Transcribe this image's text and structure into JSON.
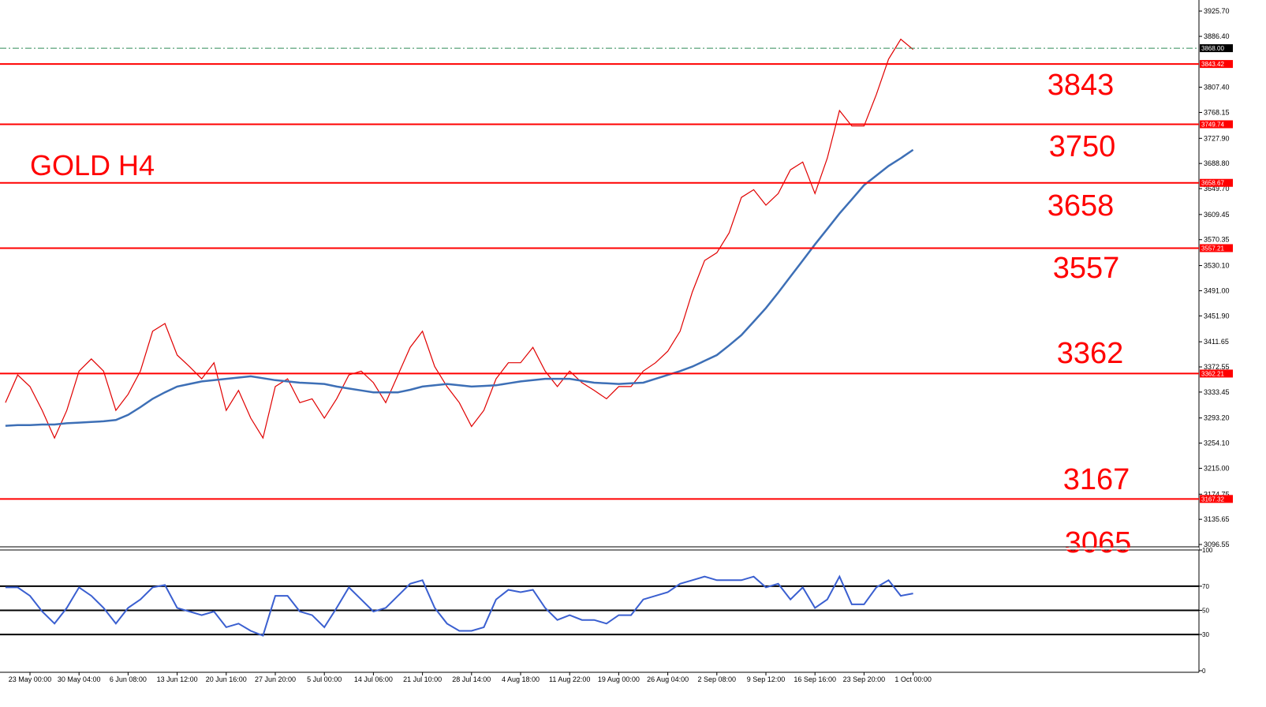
{
  "chart_data": {
    "type": "line",
    "title": "GOLD H4",
    "categories": [
      null,
      null,
      "23 May 00:00",
      null,
      null,
      null,
      "30 May 04:00",
      null,
      null,
      null,
      "6 Jun 08:00",
      null,
      null,
      null,
      "13 Jun 12:00",
      null,
      null,
      null,
      "20 Jun 16:00",
      null,
      null,
      null,
      "27 Jun 20:00",
      null,
      null,
      null,
      "5 Jul 00:00",
      null,
      null,
      null,
      "14 Jul 06:00",
      null,
      null,
      null,
      "21 Jul 10:00",
      null,
      null,
      null,
      "28 Jul 14:00",
      null,
      null,
      null,
      "4 Aug 18:00",
      null,
      null,
      null,
      "11 Aug 22:00",
      null,
      null,
      null,
      "19 Aug 00:00",
      null,
      null,
      null,
      "26 Aug 04:00",
      null,
      null,
      null,
      "2 Sep 08:00",
      null,
      null,
      null,
      "9 Sep 12:00",
      null,
      null,
      null,
      "16 Sep 16:00",
      null,
      null,
      null,
      "23 Sep 20:00",
      null,
      null,
      null,
      "1 Oct 00:00"
    ],
    "series": [
      {
        "color": "#e00000",
        "values": [
          3317,
          3360,
          3342,
          3305,
          3262,
          3305,
          3366,
          3385,
          3366,
          3305,
          3330,
          3366,
          3428,
          3440,
          3391,
          3373,
          3354,
          3379,
          3305,
          3336,
          3293,
          3262,
          3342,
          3354,
          3317,
          3323,
          3293,
          3323,
          3360,
          3366,
          3348,
          3317,
          3360,
          3403,
          3428,
          3373,
          3342,
          3317,
          3280,
          3305,
          3354,
          3379,
          3379,
          3403,
          3366,
          3342,
          3366,
          3348,
          3336,
          3323,
          3342,
          3342,
          3366,
          3379,
          3397,
          3428,
          3489,
          3538,
          3550,
          3581,
          3636,
          3648,
          3624,
          3642,
          3679,
          3691,
          3642,
          3697,
          3771,
          3747,
          3747,
          3796,
          3851,
          3882,
          3866
        ]
      },
      {
        "color": "#3d6fb6",
        "values": [
          3281,
          3282,
          3282,
          3283,
          3283,
          3285,
          3286,
          3287,
          3288,
          3290,
          3298,
          3310,
          3323,
          3333,
          3342,
          3346,
          3350,
          3352,
          3354,
          3356,
          3358,
          3355,
          3352,
          3350,
          3348,
          3347,
          3346,
          3342,
          3339,
          3336,
          3333,
          3333,
          3333,
          3337,
          3342,
          3344,
          3346,
          3344,
          3342,
          3343,
          3344,
          3347,
          3350,
          3352,
          3354,
          3354,
          3354,
          3351,
          3348,
          3347,
          3346,
          3347,
          3348,
          3354,
          3360,
          3366,
          3373,
          3382,
          3391,
          3406,
          3422,
          3443,
          3464,
          3488,
          3513,
          3538,
          3563,
          3587,
          3611,
          3633,
          3655,
          3670,
          3685,
          3697,
          3710
        ]
      }
    ],
    "ylim": [
      3092.9,
      3942.9
    ],
    "yticks": [
      {
        "value": 3925.7,
        "label": "3925.70"
      },
      {
        "value": 3886.4,
        "label": "3886.40"
      },
      {
        "value": 3807.4,
        "label": "3807.40"
      },
      3768.15,
      {
        "value": 3727.9,
        "label": "3727.90"
      },
      {
        "value": 3688.8,
        "label": "3688.80"
      },
      {
        "value": 3649.7,
        "label": "3649.70"
      },
      3609.45,
      3570.35,
      {
        "value": 3530.1,
        "label": "3530.10"
      },
      {
        "value": 3491,
        "label": "3491.00"
      },
      {
        "value": 3451.9,
        "label": "3451.90"
      },
      3411.65,
      3372.55,
      3333.45,
      {
        "value": 3293.2,
        "label": "3293.20"
      },
      {
        "value": 3254.1,
        "label": "3254.10"
      },
      {
        "value": 3215,
        "label": "3215.00"
      },
      3174.75,
      3135.65,
      3096.55
    ],
    "levels": [
      3843.42,
      3749.74,
      3658.67,
      3557.21,
      3362.21,
      3167.32
    ],
    "level_color": "#ff0000",
    "current_price": {
      "value": 3868,
      "label": "3868.00"
    },
    "annotations": [
      "3843",
      "3750",
      "3658",
      "3557",
      "3362",
      "3167",
      "3065"
    ],
    "rsi": {
      "color": "#3a5fd0",
      "values": [
        69,
        69,
        62,
        49,
        39,
        52,
        69,
        62,
        52,
        39,
        52,
        59,
        69,
        71,
        52,
        49,
        46,
        49,
        36,
        39,
        33,
        29,
        62,
        62,
        49,
        46,
        36,
        52,
        69,
        59,
        49,
        52,
        62,
        72,
        75,
        52,
        39,
        33,
        33,
        36,
        59,
        67,
        65,
        67,
        52,
        42,
        46,
        42,
        42,
        39,
        46,
        46,
        59,
        62,
        65,
        72,
        75,
        78,
        75,
        75,
        75,
        78,
        69,
        72,
        59,
        69,
        52,
        59,
        78,
        55,
        55,
        69,
        75,
        62,
        64
      ],
      "ylim": [
        0,
        100
      ],
      "yticks": [
        100,
        70,
        50,
        30,
        0
      ],
      "levels": [
        70,
        50,
        30
      ]
    }
  }
}
